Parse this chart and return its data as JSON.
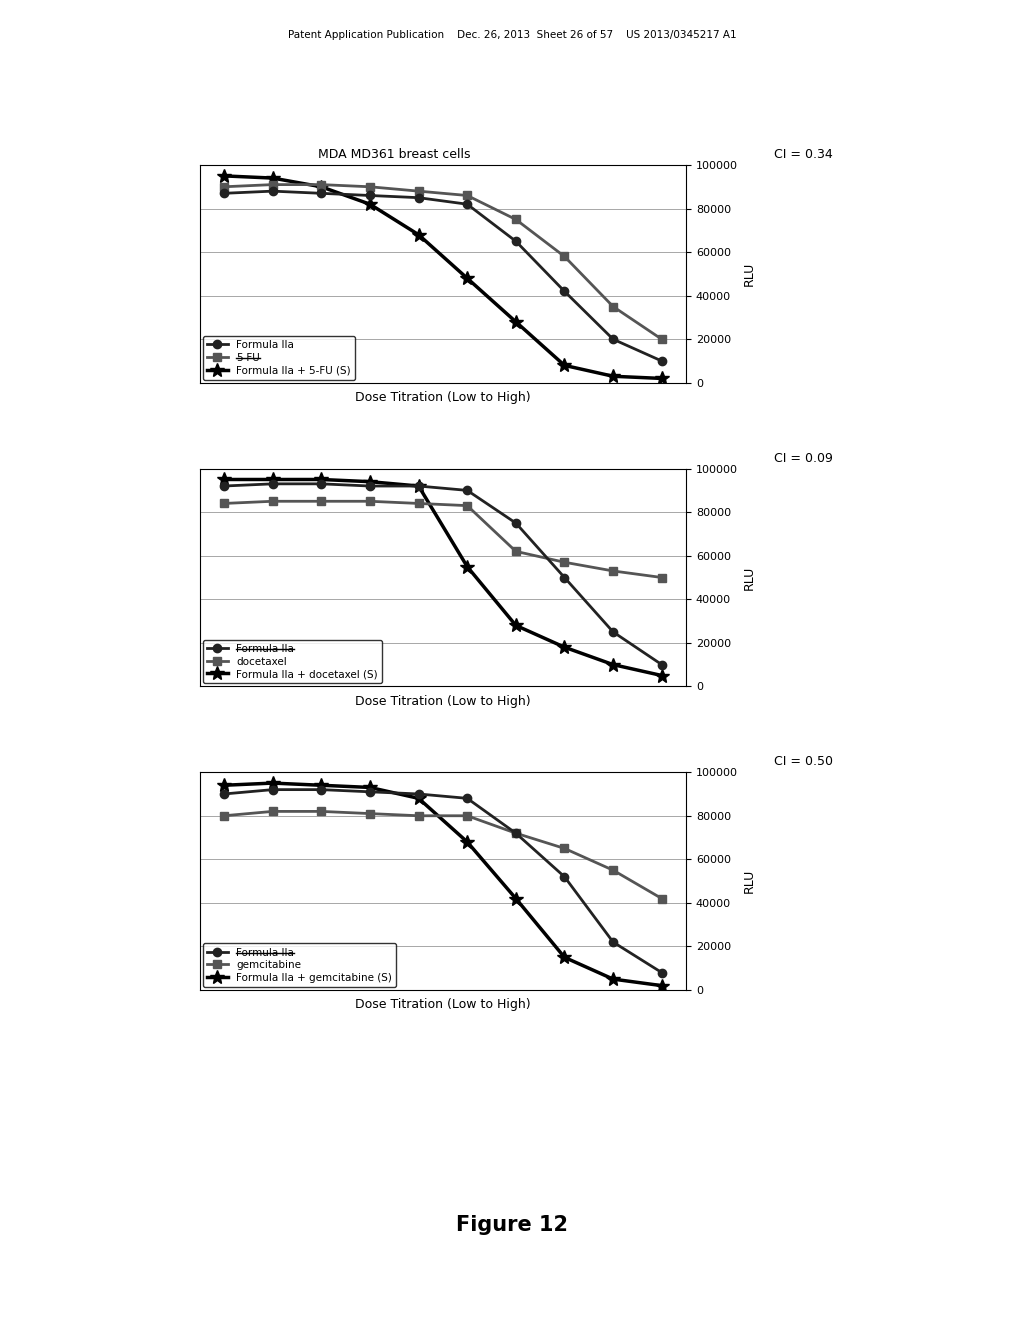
{
  "page_header": "Patent Application Publication    Dec. 26, 2013  Sheet 26 of 57    US 2013/0345217 A1",
  "figure_label": "Figure 12",
  "background_color": "#ffffff",
  "charts": [
    {
      "title": "MDA MD361 breast cells",
      "ci_label": "CI = 0.34",
      "xlabel": "Dose Titration (Low to High)",
      "ylabel": "RLU",
      "ylim": [
        0,
        100000
      ],
      "yticks": [
        0,
        20000,
        40000,
        60000,
        80000,
        100000
      ],
      "x": [
        1,
        2,
        3,
        4,
        5,
        6,
        7,
        8,
        9,
        10
      ],
      "series": [
        {
          "label": "Formula IIa",
          "marker": "o",
          "markersize": 6,
          "linewidth": 2.0,
          "color": "#222222",
          "y": [
            87000,
            88000,
            87000,
            86000,
            85000,
            82000,
            65000,
            42000,
            20000,
            10000
          ],
          "strikethrough": false
        },
        {
          "label": "5-FU",
          "marker": "s",
          "markersize": 6,
          "linewidth": 2.0,
          "color": "#555555",
          "y": [
            90000,
            91000,
            91000,
            90000,
            88000,
            86000,
            75000,
            58000,
            35000,
            20000
          ],
          "strikethrough": true
        },
        {
          "label": "Formula IIa + 5-FU (S)",
          "marker": "*",
          "markersize": 10,
          "linewidth": 2.5,
          "color": "#000000",
          "y": [
            95000,
            94000,
            90000,
            82000,
            68000,
            48000,
            28000,
            8000,
            3000,
            2000
          ],
          "strikethrough": false
        }
      ]
    },
    {
      "title": null,
      "ci_label": "CI = 0.09",
      "xlabel": "Dose Titration (Low to High)",
      "ylabel": "RLU",
      "ylim": [
        0,
        100000
      ],
      "yticks": [
        0,
        20000,
        40000,
        60000,
        80000,
        100000
      ],
      "x": [
        1,
        2,
        3,
        4,
        5,
        6,
        7,
        8,
        9,
        10
      ],
      "series": [
        {
          "label": "Formula IIa",
          "marker": "o",
          "markersize": 6,
          "linewidth": 2.0,
          "color": "#222222",
          "y": [
            92000,
            93000,
            93000,
            92000,
            92000,
            90000,
            75000,
            50000,
            25000,
            10000
          ],
          "strikethrough": true
        },
        {
          "label": "docetaxel",
          "marker": "s",
          "markersize": 6,
          "linewidth": 2.0,
          "color": "#555555",
          "y": [
            84000,
            85000,
            85000,
            85000,
            84000,
            83000,
            62000,
            57000,
            53000,
            50000
          ],
          "strikethrough": false
        },
        {
          "label": "Formula IIa + docetaxel (S)",
          "marker": "*",
          "markersize": 10,
          "linewidth": 2.5,
          "color": "#000000",
          "y": [
            95000,
            95000,
            95000,
            94000,
            92000,
            55000,
            28000,
            18000,
            10000,
            5000
          ],
          "strikethrough": false
        }
      ]
    },
    {
      "title": null,
      "ci_label": "CI = 0.50",
      "xlabel": "Dose Titration (Low to High)",
      "ylabel": "RLU",
      "ylim": [
        0,
        100000
      ],
      "yticks": [
        0,
        20000,
        40000,
        60000,
        80000,
        100000
      ],
      "x": [
        1,
        2,
        3,
        4,
        5,
        6,
        7,
        8,
        9,
        10
      ],
      "series": [
        {
          "label": "Formula IIa",
          "marker": "o",
          "markersize": 6,
          "linewidth": 2.0,
          "color": "#222222",
          "y": [
            90000,
            92000,
            92000,
            91000,
            90000,
            88000,
            72000,
            52000,
            22000,
            8000
          ],
          "strikethrough": true
        },
        {
          "label": "gemcitabine",
          "marker": "s",
          "markersize": 6,
          "linewidth": 2.0,
          "color": "#555555",
          "y": [
            80000,
            82000,
            82000,
            81000,
            80000,
            80000,
            72000,
            65000,
            55000,
            42000
          ],
          "strikethrough": false
        },
        {
          "label": "Formula IIa + gemcitabine (S)",
          "marker": "*",
          "markersize": 10,
          "linewidth": 2.5,
          "color": "#000000",
          "y": [
            94000,
            95000,
            94000,
            93000,
            88000,
            68000,
            42000,
            15000,
            5000,
            2000
          ],
          "strikethrough": false
        }
      ]
    }
  ]
}
